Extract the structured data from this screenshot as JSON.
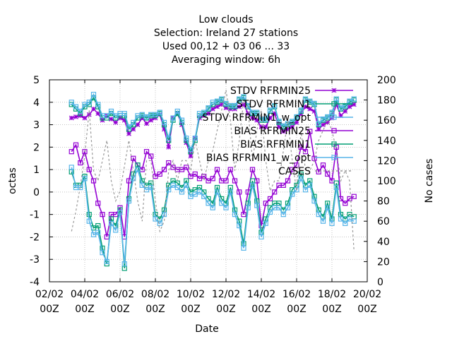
{
  "chart_data": {
    "type": "line",
    "title_lines": [
      "Low clouds",
      "Selection: Ireland      27 stations",
      "Used  00,12  + 03 06 ... 33",
      "Averaging window:  6h"
    ],
    "xlabel": "Date",
    "ylabel": "octas",
    "y2label": "No cases",
    "ylim": [
      -4,
      5
    ],
    "y2lim": [
      0,
      200
    ],
    "xlim": [
      0,
      18
    ],
    "x_ticks": [
      {
        "l1": "02/02",
        "l2": "00Z"
      },
      {
        "l1": "04/02",
        "l2": "00Z"
      },
      {
        "l1": "06/02",
        "l2": "00Z"
      },
      {
        "l1": "08/02",
        "l2": "00Z"
      },
      {
        "l1": "10/02",
        "l2": "00Z"
      },
      {
        "l1": "12/02",
        "l2": "00Z"
      },
      {
        "l1": "14/02",
        "l2": "00Z"
      },
      {
        "l1": "16/02",
        "l2": "00Z"
      },
      {
        "l1": "18/02",
        "l2": "00Z"
      },
      {
        "l1": "20/02",
        "l2": "00Z"
      }
    ],
    "y_ticks": [
      "-4",
      "-3",
      "-2",
      "-1",
      "0",
      "1",
      "2",
      "3",
      "4",
      "5"
    ],
    "y2_ticks": [
      "0",
      "20",
      "40",
      "60",
      "80",
      "100",
      "120",
      "140",
      "160",
      "180",
      "200"
    ],
    "legend_position": "top-right",
    "x": [
      1.25,
      1.5,
      1.75,
      2,
      2.25,
      2.5,
      2.75,
      3,
      3.25,
      3.5,
      3.75,
      4,
      4.25,
      4.5,
      4.75,
      5,
      5.25,
      5.5,
      5.75,
      6,
      6.25,
      6.5,
      6.75,
      7,
      7.25,
      7.5,
      7.75,
      8,
      8.25,
      8.5,
      8.75,
      9,
      9.25,
      9.5,
      9.75,
      10,
      10.25,
      10.5,
      10.75,
      11,
      11.25,
      11.5,
      11.75,
      12,
      12.25,
      12.5,
      12.75,
      13,
      13.25,
      13.5,
      13.75,
      14,
      14.25,
      14.5,
      14.75,
      15,
      15.25,
      15.5,
      15.75,
      16,
      16.25,
      16.5,
      16.75,
      17,
      17.25
    ],
    "series": [
      {
        "name": "STDV RFRMIN25",
        "axis": "y",
        "color": "#9400d3",
        "marker": "x",
        "dash": "",
        "values": [
          3.3,
          3.35,
          3.4,
          3.3,
          3.45,
          3.7,
          3.5,
          3.2,
          3.4,
          3.25,
          3.1,
          3.3,
          3.2,
          2.6,
          2.8,
          3.0,
          3.3,
          3.05,
          3.2,
          3.3,
          3.45,
          2.8,
          2.0,
          3.3,
          3.5,
          3.0,
          2.2,
          1.6,
          2.4,
          3.3,
          3.4,
          3.5,
          3.7,
          3.8,
          3.9,
          3.75,
          3.7,
          3.7,
          3.8,
          3.9,
          3.5,
          3.3,
          3.2,
          2.9,
          2.9,
          3.3,
          3.5,
          2.9,
          2.7,
          2.8,
          2.9,
          3.1,
          3.5,
          3.8,
          3.7,
          3.6,
          2.8,
          3.0,
          3.1,
          3.3,
          3.9,
          3.4,
          3.6,
          3.8,
          3.9
        ]
      },
      {
        "name": "STDV RFRMIN1",
        "axis": "y",
        "color": "#009e73",
        "marker": "square",
        "dash": "",
        "values": [
          3.9,
          3.7,
          3.5,
          3.8,
          3.9,
          4.2,
          3.8,
          3.3,
          3.3,
          3.5,
          3.3,
          3.4,
          3.4,
          2.8,
          3.0,
          3.3,
          3.4,
          3.3,
          3.4,
          3.4,
          3.5,
          3.0,
          2.3,
          3.2,
          3.5,
          3.1,
          2.3,
          1.8,
          2.3,
          3.4,
          3.5,
          3.7,
          3.9,
          4.0,
          4.1,
          3.9,
          3.8,
          3.8,
          4.1,
          4.2,
          3.8,
          3.5,
          3.5,
          3.2,
          3.2,
          3.6,
          3.8,
          3.1,
          2.9,
          3.0,
          3.1,
          3.3,
          3.6,
          4.1,
          4.0,
          3.9,
          3.0,
          3.2,
          3.3,
          3.5,
          4.1,
          3.7,
          3.8,
          4.0,
          4.1
        ]
      },
      {
        "name": "STDV RFRMIN1_w_opt",
        "axis": "y",
        "color": "#56b4e9",
        "marker": "square",
        "dash": "",
        "values": [
          4.0,
          3.8,
          3.6,
          3.9,
          4.0,
          4.35,
          3.9,
          3.4,
          3.4,
          3.6,
          3.4,
          3.5,
          3.5,
          2.9,
          3.1,
          3.4,
          3.45,
          3.35,
          3.45,
          3.45,
          3.55,
          3.1,
          2.4,
          3.3,
          3.6,
          3.2,
          2.4,
          1.9,
          2.4,
          3.5,
          3.55,
          3.75,
          4.0,
          4.05,
          4.15,
          3.95,
          3.85,
          3.85,
          4.15,
          4.25,
          3.85,
          3.55,
          3.55,
          3.25,
          3.25,
          3.65,
          3.85,
          3.15,
          2.95,
          3.05,
          3.15,
          3.35,
          3.65,
          4.15,
          4.05,
          3.95,
          3.05,
          3.25,
          3.35,
          3.55,
          4.15,
          3.75,
          3.85,
          4.05,
          4.15
        ]
      },
      {
        "name": "BIAS RFRMIN25",
        "axis": "y",
        "color": "#9400d3",
        "marker": "square",
        "dash": "",
        "values": [
          1.8,
          2.1,
          1.3,
          1.8,
          1.0,
          0.5,
          -0.5,
          -1.0,
          -2.0,
          -1.0,
          -1.0,
          -0.7,
          -2.0,
          0.5,
          1.5,
          1.2,
          1.0,
          1.8,
          1.6,
          0.7,
          0.8,
          1.0,
          1.3,
          1.1,
          1.0,
          1.0,
          1.1,
          0.7,
          0.8,
          0.6,
          0.7,
          0.5,
          0.6,
          1.0,
          0.5,
          0.5,
          1.0,
          0.5,
          0.0,
          -1.0,
          0.0,
          1.0,
          0.5,
          -1.5,
          -0.5,
          -0.3,
          0.0,
          0.3,
          0.3,
          0.5,
          1.0,
          1.2,
          2.0,
          1.8,
          2.7,
          1.5,
          0.9,
          1.2,
          0.8,
          0.5,
          2.0,
          -0.3,
          -0.5,
          -0.3,
          -0.2
        ]
      },
      {
        "name": "BIAS RFRMIN1",
        "axis": "y",
        "color": "#009e73",
        "marker": "square",
        "dash": "",
        "values": [
          0.9,
          0.3,
          0.3,
          0.7,
          -1.0,
          -1.6,
          -1.5,
          -2.5,
          -3.2,
          -1.2,
          -1.5,
          -0.8,
          -3.4,
          -0.3,
          0.8,
          1.2,
          0.5,
          0.3,
          0.4,
          -1.0,
          -1.2,
          -0.8,
          0.3,
          0.5,
          0.4,
          0.2,
          0.5,
          0.0,
          0.1,
          0.2,
          0.0,
          -0.3,
          -0.5,
          0.2,
          -0.3,
          -0.5,
          0.2,
          -0.8,
          -1.3,
          -2.3,
          -0.5,
          0.5,
          -0.4,
          -1.8,
          -1.2,
          -0.7,
          -0.5,
          -0.5,
          -0.8,
          -0.5,
          0.1,
          0.3,
          0.8,
          0.3,
          0.5,
          -0.2,
          -0.8,
          -1.1,
          -0.5,
          -1.2,
          0.4,
          -1.0,
          -1.2,
          -1.0,
          -1.1
        ]
      },
      {
        "name": "BIAS RFRMIN1_w_opt",
        "axis": "y",
        "color": "#56b4e9",
        "marker": "square",
        "dash": "",
        "values": [
          1.1,
          0.2,
          0.2,
          0.6,
          -1.3,
          -1.9,
          -1.8,
          -2.7,
          -3.1,
          -1.4,
          -1.7,
          -0.9,
          -3.2,
          -0.4,
          0.6,
          1.0,
          0.3,
          0.1,
          0.2,
          -1.2,
          -1.4,
          -1.0,
          0.1,
          0.3,
          0.2,
          0.0,
          0.3,
          -0.2,
          -0.1,
          0.0,
          -0.2,
          -0.5,
          -0.7,
          0.0,
          -0.5,
          -0.7,
          0.0,
          -1.0,
          -1.5,
          -2.5,
          -0.7,
          0.3,
          -0.6,
          -2.0,
          -1.4,
          -0.9,
          -0.7,
          -0.7,
          -1.0,
          -0.7,
          -0.1,
          0.1,
          0.6,
          0.1,
          0.3,
          -0.4,
          -1.0,
          -1.3,
          -0.7,
          -1.4,
          0.2,
          -1.2,
          -1.4,
          -1.2,
          -1.3
        ]
      },
      {
        "name": "CASES",
        "axis": "y2",
        "color": "#999999",
        "marker": "none",
        "dash": "3,3",
        "values": [
          50,
          70,
          95,
          125,
          170,
          110,
          100,
          120,
          140,
          100,
          80,
          90,
          115,
          140,
          110,
          80,
          60,
          120,
          120,
          80,
          50,
          60,
          110,
          120,
          100,
          120,
          120,
          110,
          140,
          120,
          100,
          120,
          130,
          150,
          170,
          190,
          160,
          110,
          140,
          180,
          170,
          120,
          150,
          170,
          120,
          90,
          100,
          100,
          130,
          160,
          120,
          90,
          150,
          110,
          110,
          120,
          140,
          150,
          160,
          150,
          130,
          100,
          110,
          100,
          30
        ]
      }
    ]
  }
}
